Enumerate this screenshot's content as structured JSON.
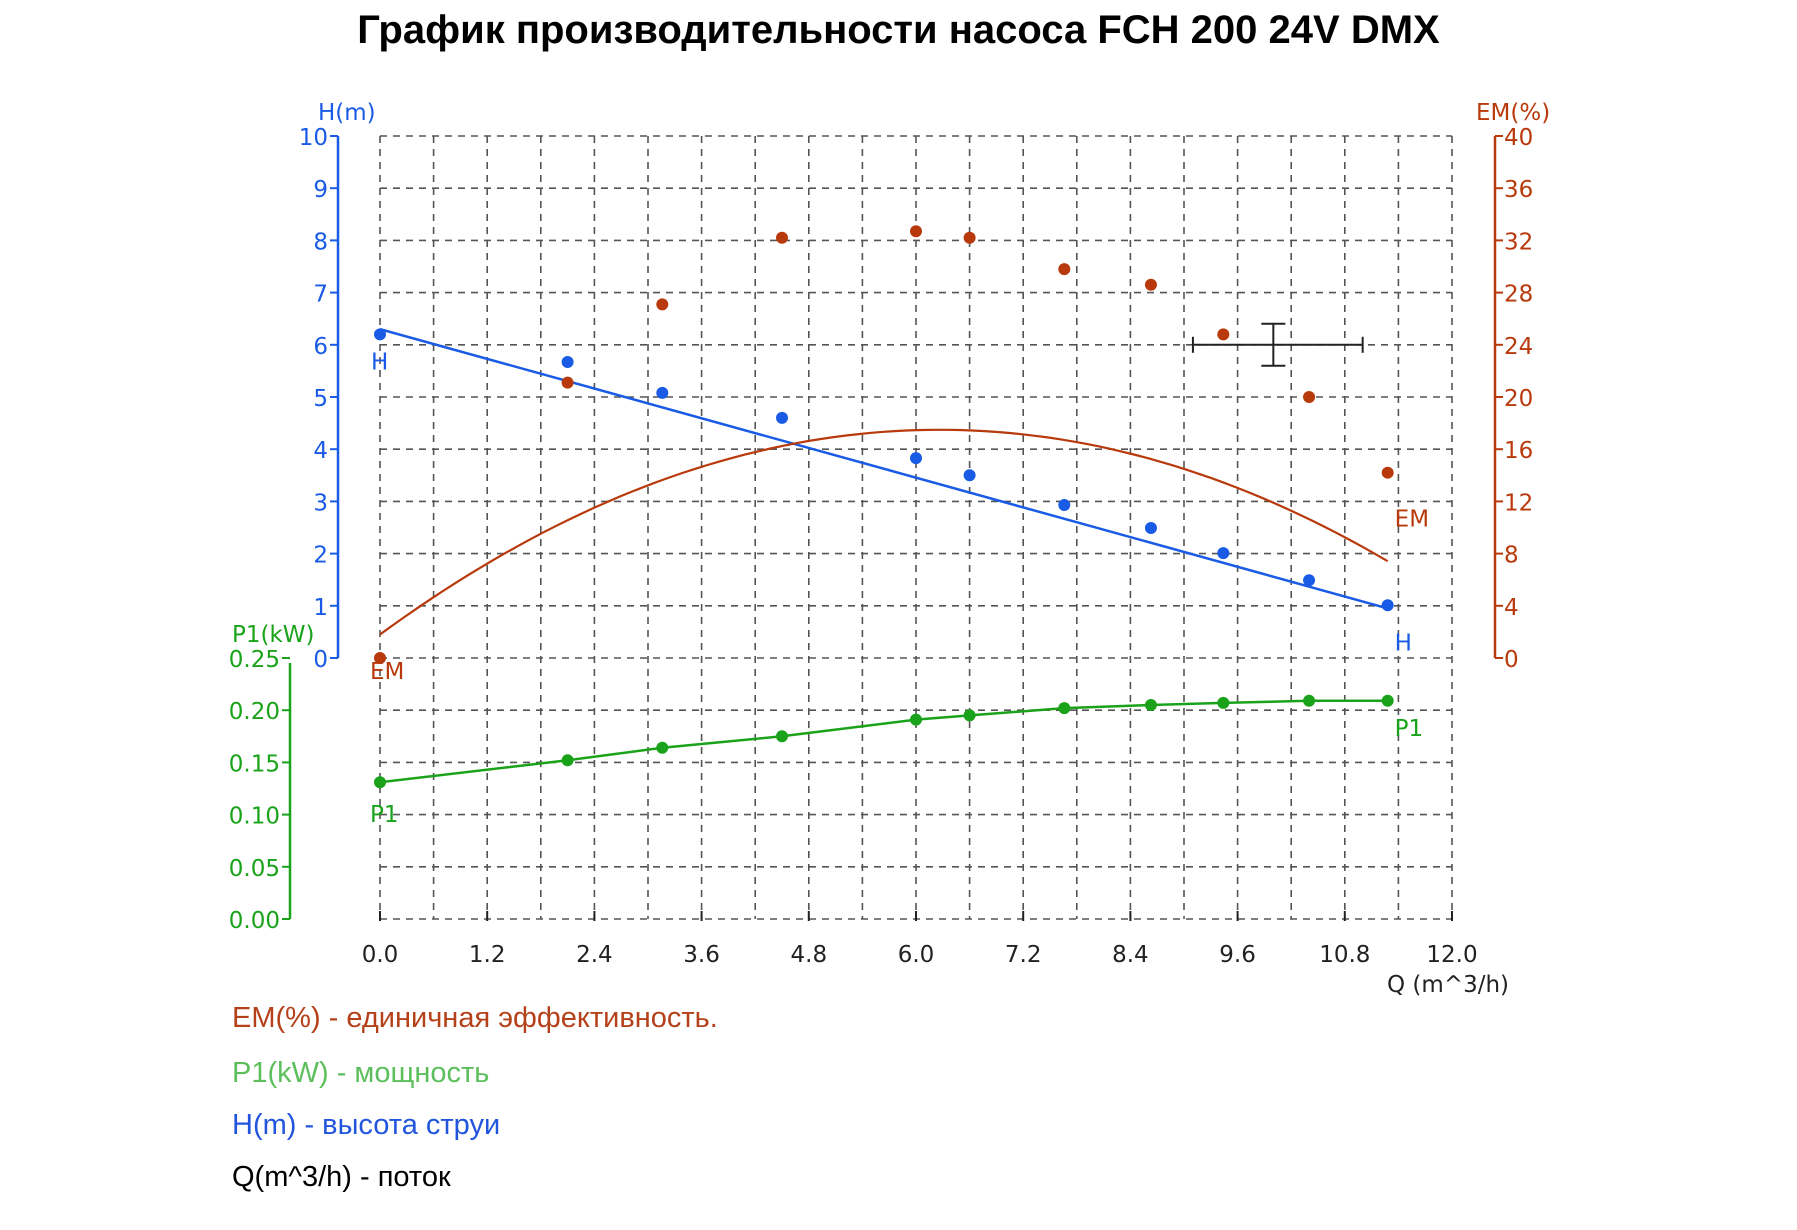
{
  "title": "График производительности насоса FCH 200 24V DMX",
  "colors": {
    "H": "#1a5be6",
    "EM": "#b83a0c",
    "P1": "#1aa31a",
    "grid": "#555555",
    "axis_x": "#222222",
    "legend_EM": "#b5411a",
    "legend_P1": "#5cbf5c",
    "legend_H": "#2255dd",
    "legend_Q": "#000000"
  },
  "legend": {
    "em": "EM(%) - единичная эффективность.",
    "p1": "P1(kW) - мощность",
    "h": "H(m) - высота струи",
    "q": "Q(m^3/h) - поток"
  },
  "chart_data": {
    "type": "line",
    "title": "График производительности насоса FCH 200 24V DMX",
    "xlabel": "Q (m^3/h)",
    "xlim": [
      0,
      12
    ],
    "xticks": [
      "0.0",
      "1.2",
      "2.4",
      "3.6",
      "4.8",
      "6.0",
      "7.2",
      "8.4",
      "9.6",
      "10.8",
      "12.0"
    ],
    "grid": true,
    "axes": {
      "H": {
        "label": "H(m)",
        "range": [
          0,
          10
        ],
        "ticks": [
          "0",
          "1",
          "2",
          "3",
          "4",
          "5",
          "6",
          "7",
          "8",
          "9",
          "10"
        ],
        "side": "left"
      },
      "EM": {
        "label": "EM(%)",
        "range": [
          0,
          40
        ],
        "ticks": [
          "0",
          "4",
          "8",
          "12",
          "16",
          "20",
          "24",
          "28",
          "32",
          "36",
          "40"
        ],
        "side": "right"
      },
      "P1": {
        "label": "P1(kW)",
        "range": [
          0,
          0.25
        ],
        "ticks": [
          "0.00",
          "0.05",
          "0.10",
          "0.15",
          "0.20",
          "0.25"
        ],
        "side": "left-lower"
      }
    },
    "x": [
      0.0,
      2.1,
      3.16,
      4.5,
      6.0,
      6.6,
      7.66,
      8.63,
      9.44,
      10.4,
      11.28
    ],
    "series": [
      {
        "name": "H",
        "axis": "H",
        "unit": "m",
        "values": [
          6.2,
          5.67,
          5.08,
          4.6,
          3.83,
          3.5,
          2.93,
          2.49,
          2.01,
          1.49,
          1.01
        ],
        "fit_endpoints": [
          6.3,
          0.95
        ],
        "end_label": "H"
      },
      {
        "name": "EM",
        "axis": "EM",
        "unit": "%",
        "values": [
          0.0,
          21.1,
          27.1,
          32.2,
          32.7,
          32.2,
          29.8,
          28.6,
          24.8,
          20.0,
          14.2
        ],
        "fit_quadratic": {
          "a": -0.4,
          "b": 5.01,
          "c": 1.8
        },
        "end_label": "EM"
      },
      {
        "name": "P1",
        "axis": "P1",
        "unit": "kW",
        "values": [
          0.131,
          0.152,
          0.164,
          0.175,
          0.191,
          0.195,
          0.202,
          0.205,
          0.207,
          0.209,
          0.209
        ],
        "end_label": "P1"
      }
    ],
    "annotations": [
      {
        "type": "crosshair",
        "x": 10.0,
        "x_range": [
          9.1,
          11.0
        ],
        "H": 6.0,
        "EM": 24,
        "color": "#222222"
      }
    ]
  }
}
